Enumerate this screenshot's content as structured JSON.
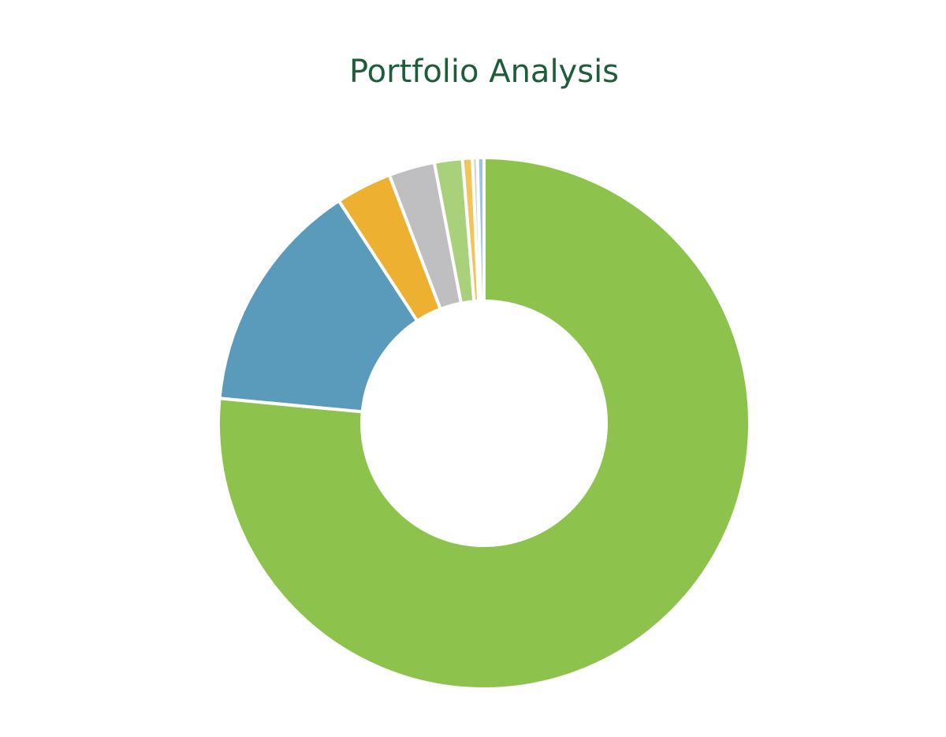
{
  "chart_data": {
    "type": "pie",
    "title": "Portfolio Analysis",
    "values": [
      76.5,
      14.3,
      3.4,
      2.8,
      1.7,
      0.6,
      0.3,
      0.4
    ],
    "colors": [
      "#8dc34c",
      "#5a9abb",
      "#edb030",
      "#bfbfc1",
      "#a9d07a",
      "#f2c55c",
      "#d0d0d0",
      "#9dc3e6"
    ]
  }
}
